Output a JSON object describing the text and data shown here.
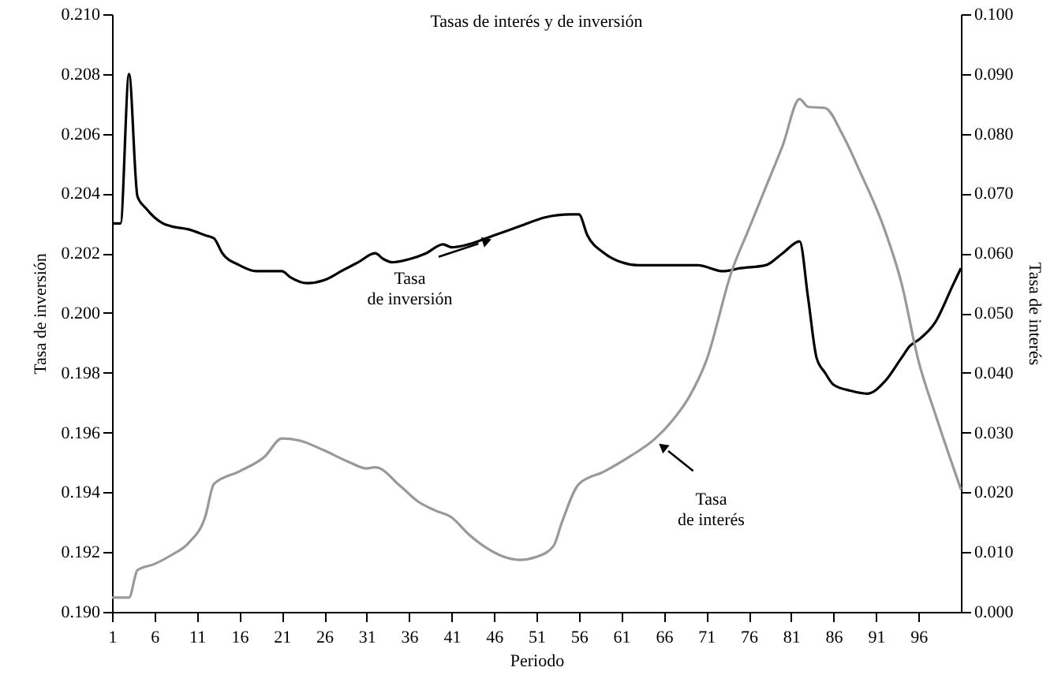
{
  "chart_data": {
    "type": "line",
    "title": "Tasas de interés y de inversión",
    "xlabel": "Periodo",
    "ylabel": "Tasa de inversión",
    "y2label": "Tasa de interés",
    "xlim": [
      1,
      101
    ],
    "xticks": [
      1,
      6,
      11,
      16,
      21,
      26,
      31,
      36,
      41,
      46,
      51,
      56,
      61,
      66,
      71,
      76,
      81,
      86,
      91,
      96
    ],
    "ylim": [
      0.19,
      0.21
    ],
    "yticks": [
      {
        "value": 0.19,
        "label": "0.190"
      },
      {
        "value": 0.192,
        "label": "0.192"
      },
      {
        "value": 0.194,
        "label": "0.194"
      },
      {
        "value": 0.196,
        "label": "0.196"
      },
      {
        "value": 0.198,
        "label": "0.198"
      },
      {
        "value": 0.2,
        "label": "0.200"
      },
      {
        "value": 0.202,
        "label": "0.202"
      },
      {
        "value": 0.204,
        "label": "0.204"
      },
      {
        "value": 0.206,
        "label": "0.206"
      },
      {
        "value": 0.208,
        "label": "0.208"
      },
      {
        "value": 0.21,
        "label": "0.210"
      }
    ],
    "y2lim": [
      0,
      0.1
    ],
    "y2ticks": [
      {
        "value": 0,
        "label": "0.000"
      },
      {
        "value": 0.01,
        "label": "0.010"
      },
      {
        "value": 0.02,
        "label": "0.020"
      },
      {
        "value": 0.03,
        "label": "0.030"
      },
      {
        "value": 0.04,
        "label": "0.040"
      },
      {
        "value": 0.05,
        "label": "0.050"
      },
      {
        "value": 0.06,
        "label": "0.060"
      },
      {
        "value": 0.07,
        "label": "0.070"
      },
      {
        "value": 0.08,
        "label": "0.080"
      },
      {
        "value": 0.09,
        "label": "0.090"
      },
      {
        "value": 0.1,
        "label": "0.100"
      }
    ],
    "grid": false,
    "marker": "none",
    "line_style": "solid",
    "series": [
      {
        "color": "#000000",
        "x": [
          1,
          2,
          3,
          4,
          5,
          6,
          7,
          8,
          10,
          12,
          13,
          14,
          16,
          18,
          20,
          21,
          22,
          24,
          26,
          28,
          30,
          32,
          33,
          34,
          36,
          38,
          40,
          41,
          43,
          46,
          49,
          52,
          55,
          56,
          57,
          59,
          61,
          63,
          66,
          70,
          73,
          75,
          78,
          80,
          82,
          83,
          84,
          85,
          86,
          88,
          90,
          92,
          94,
          95,
          96,
          98,
          100,
          101
        ],
        "values": [
          0.203,
          0.203,
          0.208,
          0.2039,
          0.2035,
          0.2032,
          0.203,
          0.2029,
          0.2028,
          0.2026,
          0.2025,
          0.202,
          0.2016,
          0.2014,
          0.2014,
          0.2014,
          0.2012,
          0.201,
          0.2011,
          0.2014,
          0.2017,
          0.202,
          0.2018,
          0.2017,
          0.2018,
          0.202,
          0.2023,
          0.2022,
          0.2023,
          0.2026,
          0.2029,
          0.2032,
          0.2033,
          0.2033,
          0.2026,
          0.202,
          0.2017,
          0.2016,
          0.2016,
          0.2016,
          0.2014,
          0.2015,
          0.2016,
          0.202,
          0.2024,
          0.2005,
          0.1985,
          0.198,
          0.1976,
          0.1974,
          0.1973,
          0.1977,
          0.1985,
          0.1989,
          0.1991,
          0.1997,
          0.2009,
          0.2015
        ]
      },
      {
        "color": "#999999",
        "axis": "y2",
        "x": [
          1,
          3,
          4,
          6,
          8,
          10,
          12,
          13,
          16,
          19,
          21,
          23,
          26,
          29,
          31,
          32,
          35,
          37,
          39,
          41,
          43,
          45,
          47,
          49,
          51,
          53,
          54,
          56,
          59,
          62,
          65,
          67,
          69,
          71,
          74,
          76,
          78,
          80,
          82,
          83,
          85,
          87,
          89,
          92,
          94,
          96,
          98,
          101
        ],
        "values": [
          0.0024,
          0.0024,
          0.007,
          0.008,
          0.0095,
          0.0115,
          0.016,
          0.0214,
          0.0235,
          0.026,
          0.029,
          0.0287,
          0.027,
          0.025,
          0.024,
          0.0242,
          0.021,
          0.0185,
          0.017,
          0.0158,
          0.013,
          0.0108,
          0.0093,
          0.0087,
          0.0092,
          0.011,
          0.015,
          0.0214,
          0.0235,
          0.026,
          0.029,
          0.032,
          0.036,
          0.042,
          0.057,
          0.064,
          0.071,
          0.078,
          0.0858,
          0.0845,
          0.0843,
          0.08,
          0.074,
          0.064,
          0.055,
          0.042,
          0.033,
          0.0205
        ]
      }
    ],
    "annotations": [
      {
        "text": "Tasa\nde inversión",
        "x": 45,
        "y": 0.2024
      },
      {
        "text": "Tasa\nde interés",
        "x": 66,
        "y": 0.1955
      }
    ]
  }
}
